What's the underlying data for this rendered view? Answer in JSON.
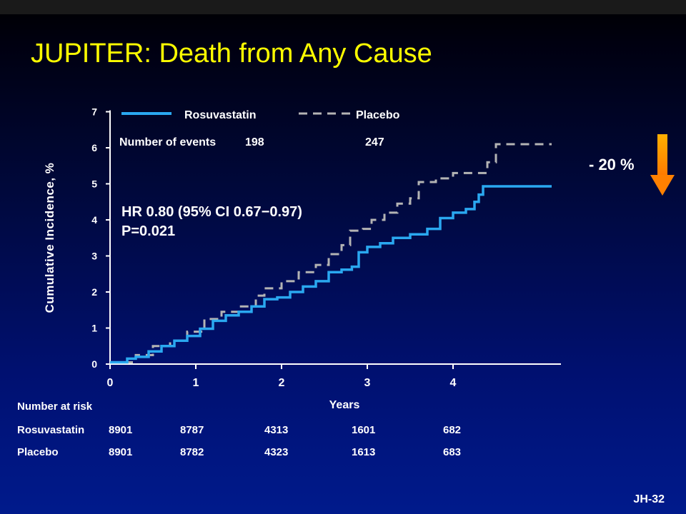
{
  "title": "JUPITER: Death from Any Cause",
  "slide_id": "JH-32",
  "hr_line1": "HR 0.80 (95% CI 0.67−0.97)",
  "hr_line2": "P=0.021",
  "reduction_label": "- 20 %",
  "colors": {
    "title": "#ffff00",
    "rosuvastatin": "#2aa8f0",
    "placebo": "#b4b4b4",
    "arrow": "#ff9900"
  },
  "chart_data": {
    "type": "line",
    "title": "",
    "xlabel": "Years",
    "ylabel": "Cumulative Incidence, %",
    "xlim": [
      0,
      5.2
    ],
    "ylim": [
      0,
      7
    ],
    "x_ticks": [
      "0",
      "1",
      "2",
      "3",
      "4"
    ],
    "y_ticks": [
      "0",
      "1",
      "2",
      "3",
      "4",
      "5",
      "6",
      "7"
    ],
    "legend": {
      "position": "top",
      "events_label": "Number of events"
    },
    "series": [
      {
        "name": "Rosuvastatin",
        "style": "solid",
        "events": "198",
        "points": [
          [
            0,
            0.05
          ],
          [
            0.12,
            0.05
          ],
          [
            0.2,
            0.15
          ],
          [
            0.3,
            0.2
          ],
          [
            0.45,
            0.35
          ],
          [
            0.6,
            0.5
          ],
          [
            0.75,
            0.65
          ],
          [
            0.9,
            0.78
          ],
          [
            1.05,
            0.98
          ],
          [
            1.2,
            1.2
          ],
          [
            1.35,
            1.35
          ],
          [
            1.5,
            1.45
          ],
          [
            1.65,
            1.6
          ],
          [
            1.8,
            1.8
          ],
          [
            1.95,
            1.85
          ],
          [
            2.1,
            2.0
          ],
          [
            2.25,
            2.15
          ],
          [
            2.4,
            2.3
          ],
          [
            2.55,
            2.55
          ],
          [
            2.7,
            2.62
          ],
          [
            2.82,
            2.7
          ],
          [
            2.9,
            3.1
          ],
          [
            3.0,
            3.25
          ],
          [
            3.15,
            3.35
          ],
          [
            3.3,
            3.5
          ],
          [
            3.5,
            3.6
          ],
          [
            3.7,
            3.75
          ],
          [
            3.85,
            4.05
          ],
          [
            4.0,
            4.2
          ],
          [
            4.15,
            4.3
          ],
          [
            4.25,
            4.5
          ],
          [
            4.3,
            4.7
          ],
          [
            4.35,
            4.93
          ],
          [
            5.15,
            4.93
          ]
        ]
      },
      {
        "name": "Placebo",
        "style": "dashed",
        "events": "247",
        "points": [
          [
            0,
            0.05
          ],
          [
            0.12,
            0.05
          ],
          [
            0.3,
            0.25
          ],
          [
            0.5,
            0.5
          ],
          [
            0.7,
            0.65
          ],
          [
            0.9,
            0.9
          ],
          [
            1.1,
            1.25
          ],
          [
            1.3,
            1.45
          ],
          [
            1.5,
            1.6
          ],
          [
            1.7,
            1.9
          ],
          [
            1.8,
            2.1
          ],
          [
            2.0,
            2.3
          ],
          [
            2.2,
            2.55
          ],
          [
            2.4,
            2.75
          ],
          [
            2.55,
            3.05
          ],
          [
            2.7,
            3.3
          ],
          [
            2.8,
            3.7
          ],
          [
            2.95,
            3.75
          ],
          [
            3.05,
            4.0
          ],
          [
            3.2,
            4.2
          ],
          [
            3.35,
            4.45
          ],
          [
            3.5,
            4.6
          ],
          [
            3.6,
            5.05
          ],
          [
            3.8,
            5.15
          ],
          [
            4.0,
            5.3
          ],
          [
            4.2,
            5.3
          ],
          [
            4.4,
            5.6
          ],
          [
            4.5,
            6.1
          ],
          [
            5.15,
            6.1
          ]
        ]
      }
    ]
  },
  "risk_table": {
    "header": "Number at risk",
    "rows": [
      {
        "label": "Rosuvastatin",
        "values": [
          "8901",
          "8787",
          "4313",
          "1601",
          "682"
        ]
      },
      {
        "label": "Placebo",
        "values": [
          "8901",
          "8782",
          "4323",
          "1613",
          "683"
        ]
      }
    ]
  }
}
